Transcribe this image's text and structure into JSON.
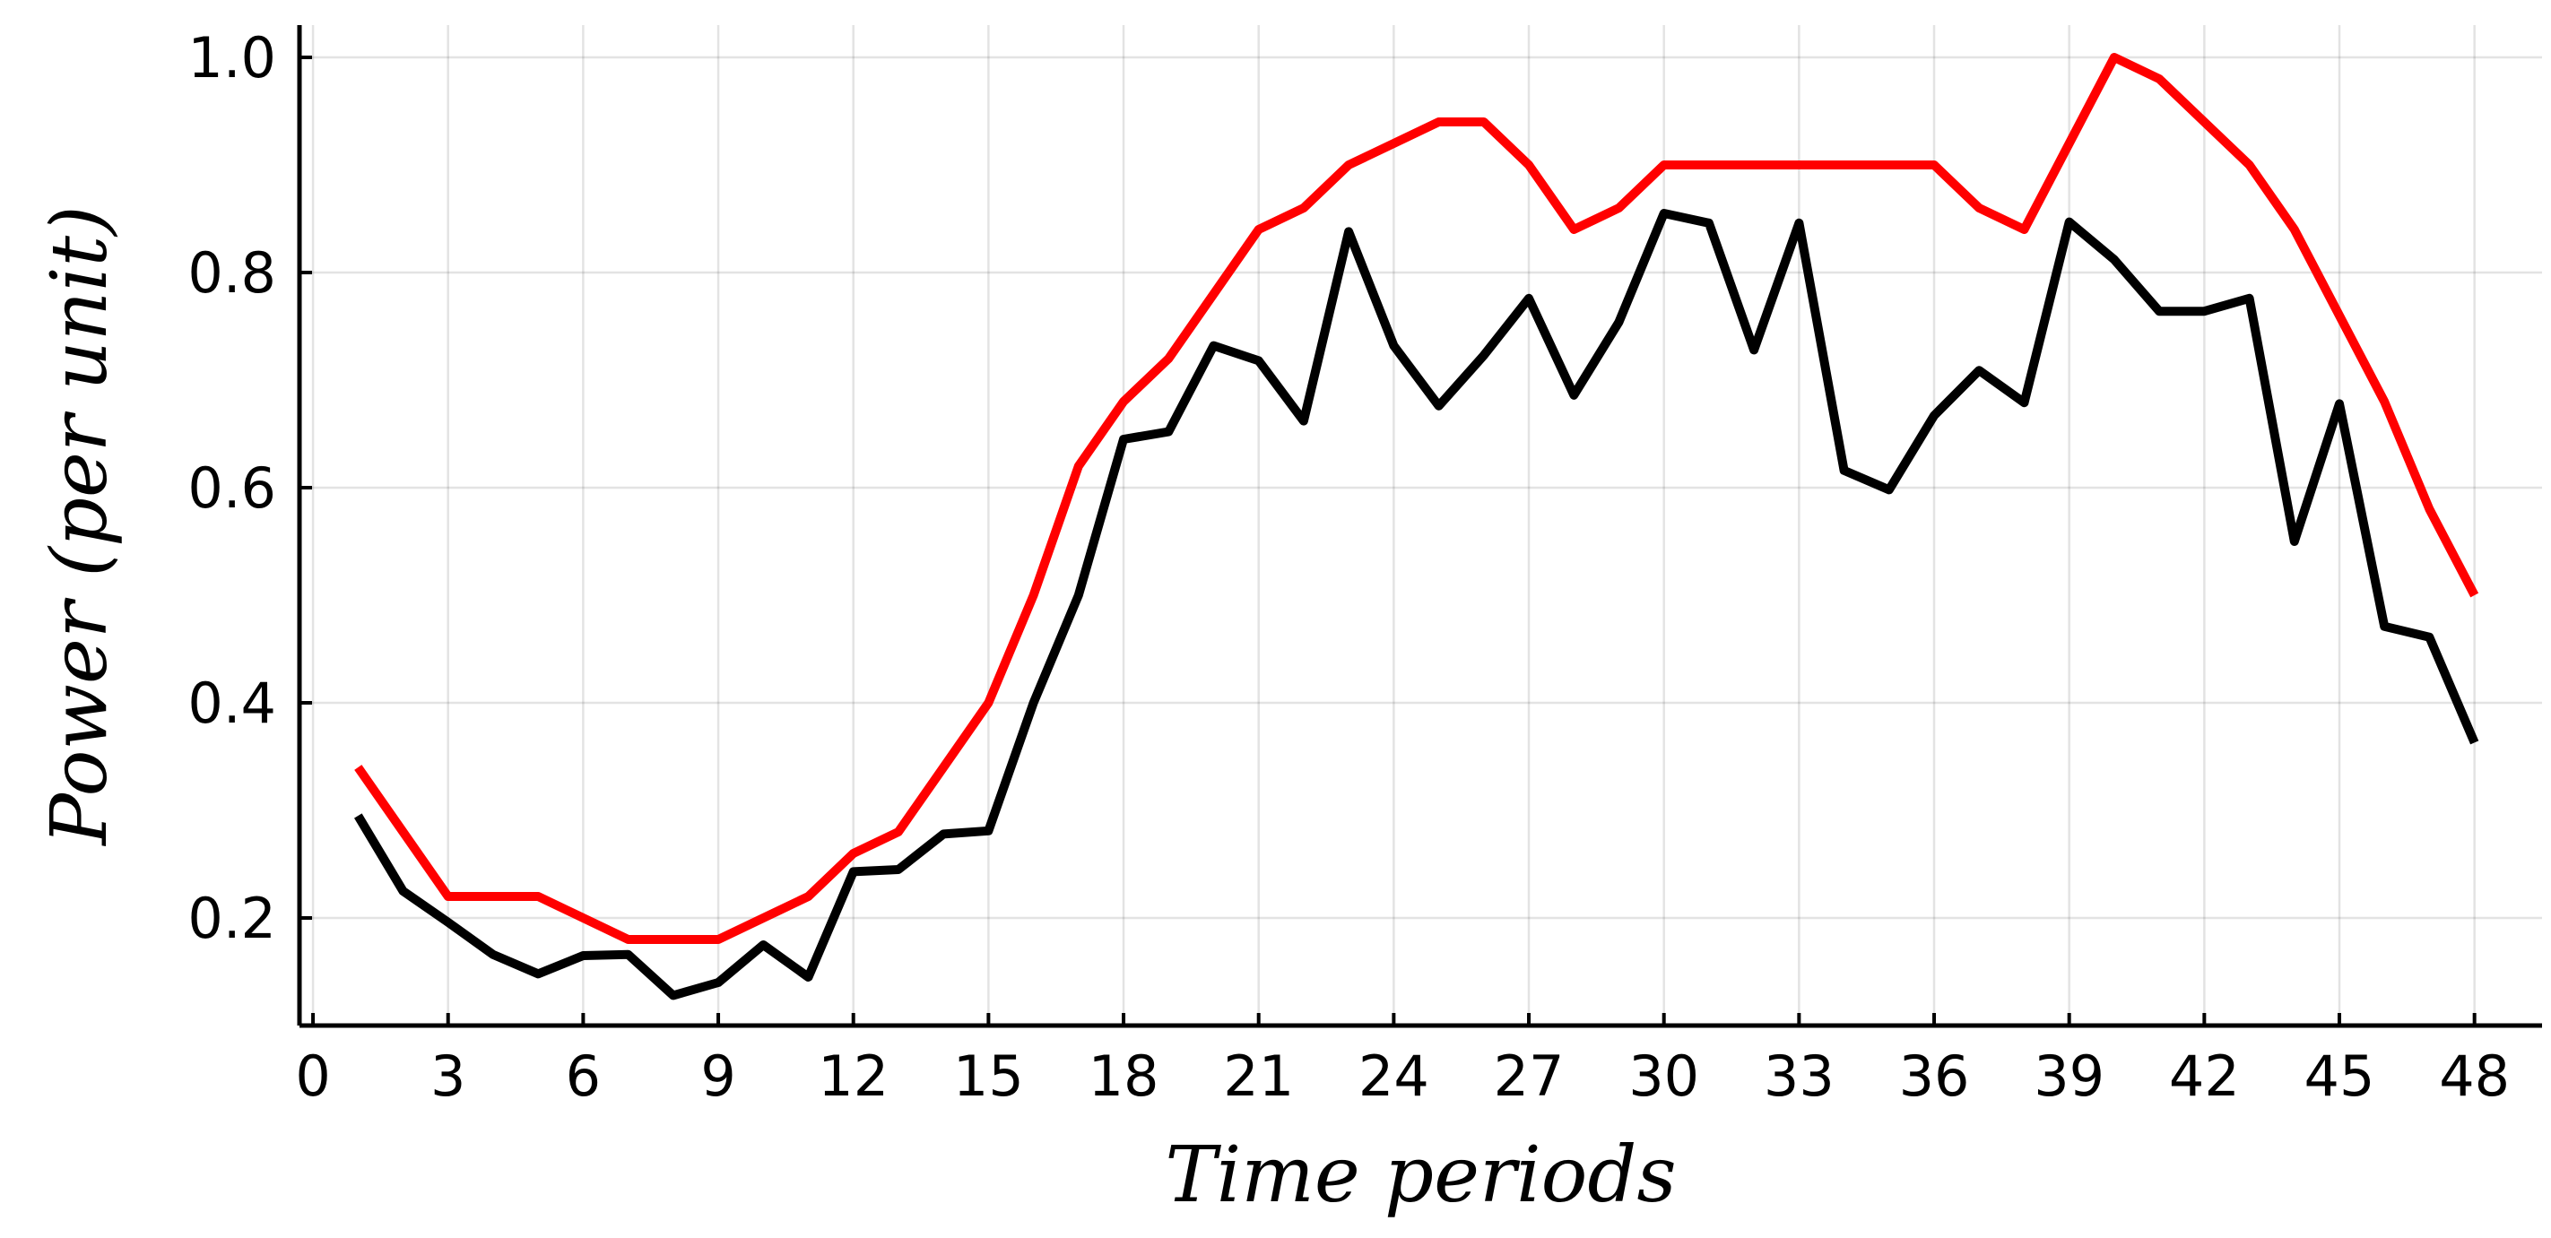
{
  "chart_data": {
    "type": "line",
    "title": "",
    "xlabel": "Time periods",
    "ylabel": "Power (per unit)",
    "xlim": [
      -0.3,
      49.5
    ],
    "ylim": [
      0.1,
      1.03
    ],
    "xticks": [
      0,
      3,
      6,
      9,
      12,
      15,
      18,
      21,
      24,
      27,
      30,
      33,
      36,
      39,
      42,
      45,
      48
    ],
    "yticks": [
      0.2,
      0.4,
      0.6,
      0.8,
      1.0
    ],
    "ytick_labels": [
      "0.2",
      "0.4",
      "0.6",
      "0.8",
      "1.0"
    ],
    "grid": true,
    "legend": "none",
    "x": [
      1,
      2,
      3,
      4,
      5,
      6,
      7,
      8,
      9,
      10,
      11,
      12,
      13,
      14,
      15,
      16,
      17,
      18,
      19,
      20,
      21,
      22,
      23,
      24,
      25,
      26,
      27,
      28,
      29,
      30,
      31,
      32,
      33,
      34,
      35,
      36,
      37,
      38,
      39,
      40,
      41,
      42,
      43,
      44,
      45,
      46,
      47,
      48
    ],
    "series": [
      {
        "color": "#ff0000",
        "values": [
          0.34,
          0.28,
          0.22,
          0.22,
          0.22,
          0.2,
          0.18,
          0.18,
          0.18,
          0.2,
          0.22,
          0.26,
          0.28,
          0.34,
          0.4,
          0.5,
          0.62,
          0.68,
          0.72,
          0.78,
          0.84,
          0.86,
          0.9,
          0.92,
          0.94,
          0.94,
          0.9,
          0.84,
          0.86,
          0.9,
          0.9,
          0.9,
          0.9,
          0.9,
          0.9,
          0.9,
          0.86,
          0.84,
          0.92,
          1.0,
          0.98,
          0.94,
          0.9,
          0.84,
          0.76,
          0.68,
          0.58,
          0.5
        ]
      },
      {
        "color": "#000000",
        "values": [
          0.295,
          0.225,
          0.196,
          0.166,
          0.148,
          0.165,
          0.166,
          0.128,
          0.14,
          0.175,
          0.145,
          0.243,
          0.245,
          0.278,
          0.281,
          0.4,
          0.5,
          0.645,
          0.652,
          0.732,
          0.718,
          0.662,
          0.838,
          0.732,
          0.676,
          0.723,
          0.776,
          0.686,
          0.754,
          0.855,
          0.846,
          0.728,
          0.846,
          0.616,
          0.598,
          0.667,
          0.709,
          0.679,
          0.847,
          0.812,
          0.764,
          0.764,
          0.776,
          0.55,
          0.678,
          0.471,
          0.461,
          0.363
        ]
      }
    ]
  }
}
